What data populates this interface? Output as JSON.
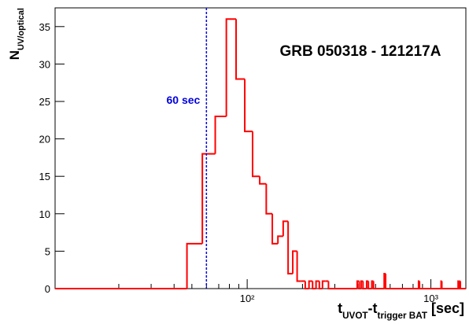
{
  "chart_data": {
    "type": "histogram",
    "title": "GRB 050318 - 121217A",
    "ylabel": [
      {
        "text": "N"
      },
      {
        "text": "UV/optical",
        "sub": true
      }
    ],
    "xlabel": [
      {
        "text": "t"
      },
      {
        "text": "UVOT",
        "sub": true
      },
      {
        "text": "-t"
      },
      {
        "text": "trigger BAT",
        "sub": true
      },
      {
        "text": " [sec]"
      }
    ],
    "color": "#ff0000",
    "xscale": "log",
    "xlim": [
      9,
      1550
    ],
    "ylim": [
      0,
      37.5
    ],
    "yticks": [
      0,
      5,
      10,
      15,
      20,
      25,
      30,
      35
    ],
    "xticks": [
      {
        "value": 100,
        "label": "10²"
      },
      {
        "value": 1000,
        "label": "10³"
      }
    ],
    "xminorticks": [
      20,
      30,
      40,
      50,
      60,
      70,
      80,
      90,
      200,
      300,
      400,
      500,
      600,
      700,
      800,
      900
    ],
    "bins": [
      9,
      47,
      57,
      67,
      77,
      87,
      97,
      107,
      117,
      127,
      137,
      147,
      157,
      167,
      177,
      187,
      197,
      207,
      217,
      227,
      237,
      247,
      257,
      267,
      277,
      397,
      407,
      417,
      427,
      447,
      457,
      477,
      487,
      557,
      567,
      857,
      867,
      1137,
      1147,
      1407,
      1417,
      1437,
      1447,
      1550
    ],
    "values": [
      0,
      6,
      18,
      23,
      36,
      28,
      21,
      15,
      14,
      10,
      6,
      7,
      9,
      2,
      5,
      1,
      1,
      0,
      1,
      0,
      1,
      0,
      1,
      1,
      0,
      1,
      0,
      1,
      0,
      1,
      0,
      1,
      0,
      2,
      0,
      1,
      0,
      1,
      0,
      1,
      0,
      1,
      0
    ],
    "annotation": {
      "x": 60,
      "label": "60 sec",
      "color": "#0000dd"
    }
  }
}
